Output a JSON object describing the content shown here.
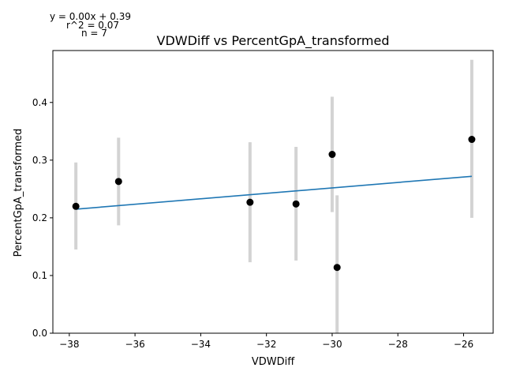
{
  "chart_data": {
    "type": "scatter",
    "title": "VDWDiff vs PercentGpA_transformed",
    "xlabel": "VDWDiff",
    "ylabel": "PercentGpA_transformed",
    "xlim": [
      -38.5,
      -25.1
    ],
    "ylim": [
      0.0,
      0.49
    ],
    "xticks": [
      -38,
      -36,
      -34,
      -32,
      -30,
      -28,
      -26
    ],
    "xtick_labels": [
      "−38",
      "−36",
      "−34",
      "−32",
      "−30",
      "−28",
      "−26"
    ],
    "yticks": [
      0.0,
      0.1,
      0.2,
      0.3,
      0.4
    ],
    "ytick_labels": [
      "0.0",
      "0.1",
      "0.2",
      "0.3",
      "0.4"
    ],
    "grid": false,
    "points": [
      {
        "x": -37.8,
        "y": 0.22,
        "err_low": 0.145,
        "err_high": 0.296
      },
      {
        "x": -36.5,
        "y": 0.263,
        "err_low": 0.187,
        "err_high": 0.339
      },
      {
        "x": -32.5,
        "y": 0.227,
        "err_low": 0.123,
        "err_high": 0.331
      },
      {
        "x": -31.1,
        "y": 0.224,
        "err_low": 0.126,
        "err_high": 0.323
      },
      {
        "x": -30.0,
        "y": 0.31,
        "err_low": 0.21,
        "err_high": 0.41
      },
      {
        "x": -29.85,
        "y": 0.114,
        "err_low": 0.0,
        "err_high": 0.239
      },
      {
        "x": -25.75,
        "y": 0.336,
        "err_low": 0.2,
        "err_high": 0.474
      }
    ],
    "fit_line": {
      "x": [
        -37.8,
        -25.75
      ],
      "y": [
        0.215,
        0.272
      ]
    },
    "annotations": {
      "equation": "y = 0.00x + 0.39",
      "r2": "r^2 = 0.07",
      "n": "n = 7"
    },
    "colors": {
      "points": "#000000",
      "errorbars": "#d3d3d3",
      "fit": "#1f77b4"
    }
  }
}
